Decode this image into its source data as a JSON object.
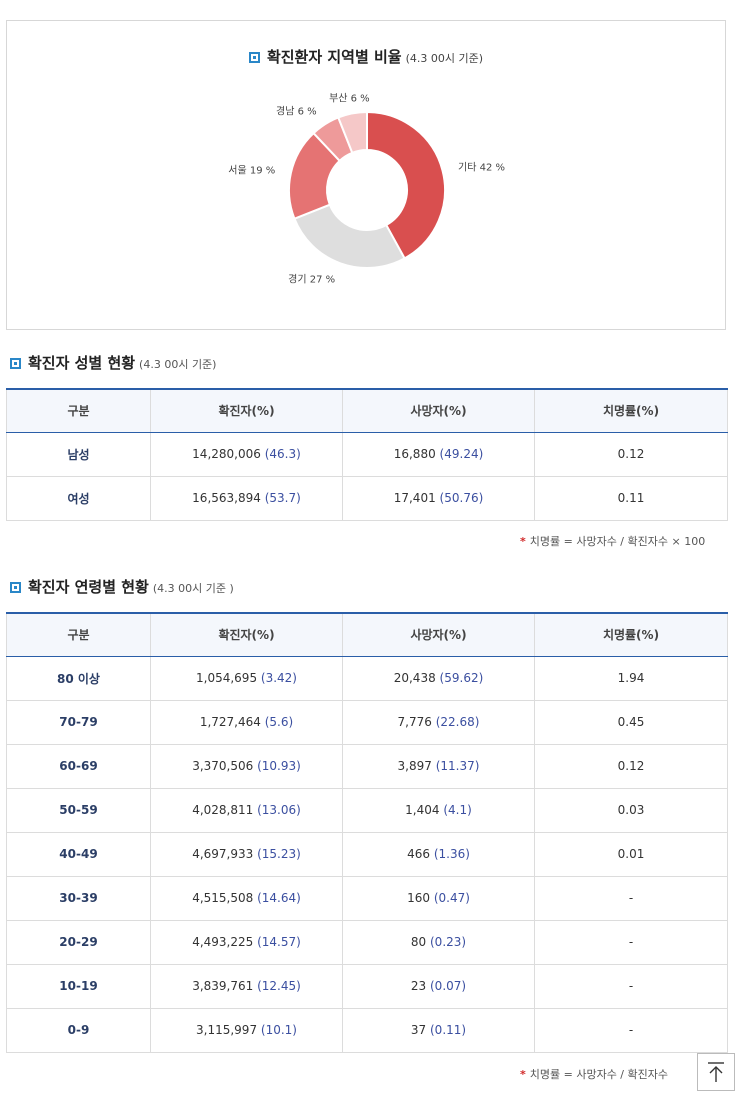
{
  "chart_section": {
    "title": "확진환자 지역별 비율",
    "subtitle": "(4.3 00시 기준)"
  },
  "chart_data": {
    "type": "pie",
    "donut": true,
    "title": "확진환자 지역별 비율",
    "subtitle": "(4.3 00시 기준)",
    "slices": [
      {
        "label": "기타",
        "value": 42,
        "display": "기타 42 %",
        "color": "#d94f4f"
      },
      {
        "label": "경기",
        "value": 27,
        "display": "경기 27 %",
        "color": "#dedede"
      },
      {
        "label": "서울",
        "value": 19,
        "display": "서울 19 %",
        "color": "#e57373"
      },
      {
        "label": "경남",
        "value": 6,
        "display": "경남 6 %",
        "color": "#ee9a9a"
      },
      {
        "label": "부산",
        "value": 6,
        "display": "부산 6 %",
        "color": "#f5c8c8"
      }
    ]
  },
  "gender_section": {
    "title": "확진자 성별 현황",
    "subtitle": "(4.3 00시 기준)",
    "headers": [
      "구분",
      "확진자(%)",
      "사망자(%)",
      "치명률(%)"
    ],
    "rows": [
      {
        "group": "남성",
        "confirmed": "14,280,006",
        "confirmed_pct": "(46.3)",
        "deaths": "16,880",
        "deaths_pct": "(49.24)",
        "fatality": "0.12"
      },
      {
        "group": "여성",
        "confirmed": "16,563,894",
        "confirmed_pct": "(53.7)",
        "deaths": "17,401",
        "deaths_pct": "(50.76)",
        "fatality": "0.11"
      }
    ],
    "note": "치명률 = 사망자수 / 확진자수 × 100"
  },
  "age_section": {
    "title": "확진자 연령별 현황",
    "subtitle": "(4.3 00시 기준 )",
    "headers": [
      "구분",
      "확진자(%)",
      "사망자(%)",
      "치명률(%)"
    ],
    "rows": [
      {
        "group": "80 이상",
        "confirmed": "1,054,695",
        "confirmed_pct": "(3.42)",
        "deaths": "20,438",
        "deaths_pct": "(59.62)",
        "fatality": "1.94"
      },
      {
        "group": "70-79",
        "confirmed": "1,727,464",
        "confirmed_pct": "(5.6)",
        "deaths": "7,776",
        "deaths_pct": "(22.68)",
        "fatality": "0.45"
      },
      {
        "group": "60-69",
        "confirmed": "3,370,506",
        "confirmed_pct": "(10.93)",
        "deaths": "3,897",
        "deaths_pct": "(11.37)",
        "fatality": "0.12"
      },
      {
        "group": "50-59",
        "confirmed": "4,028,811",
        "confirmed_pct": "(13.06)",
        "deaths": "1,404",
        "deaths_pct": "(4.1)",
        "fatality": "0.03"
      },
      {
        "group": "40-49",
        "confirmed": "4,697,933",
        "confirmed_pct": "(15.23)",
        "deaths": "466",
        "deaths_pct": "(1.36)",
        "fatality": "0.01"
      },
      {
        "group": "30-39",
        "confirmed": "4,515,508",
        "confirmed_pct": "(14.64)",
        "deaths": "160",
        "deaths_pct": "(0.47)",
        "fatality": "-"
      },
      {
        "group": "20-29",
        "confirmed": "4,493,225",
        "confirmed_pct": "(14.57)",
        "deaths": "80",
        "deaths_pct": "(0.23)",
        "fatality": "-"
      },
      {
        "group": "10-19",
        "confirmed": "3,839,761",
        "confirmed_pct": "(12.45)",
        "deaths": "23",
        "deaths_pct": "(0.07)",
        "fatality": "-"
      },
      {
        "group": "0-9",
        "confirmed": "3,115,997",
        "confirmed_pct": "(10.1)",
        "deaths": "37",
        "deaths_pct": "(0.11)",
        "fatality": "-"
      }
    ],
    "note": "치명률 = 사망자수 / 확진자수"
  },
  "ui": {
    "top_button_icon": "arrow-up-to-top-icon"
  }
}
